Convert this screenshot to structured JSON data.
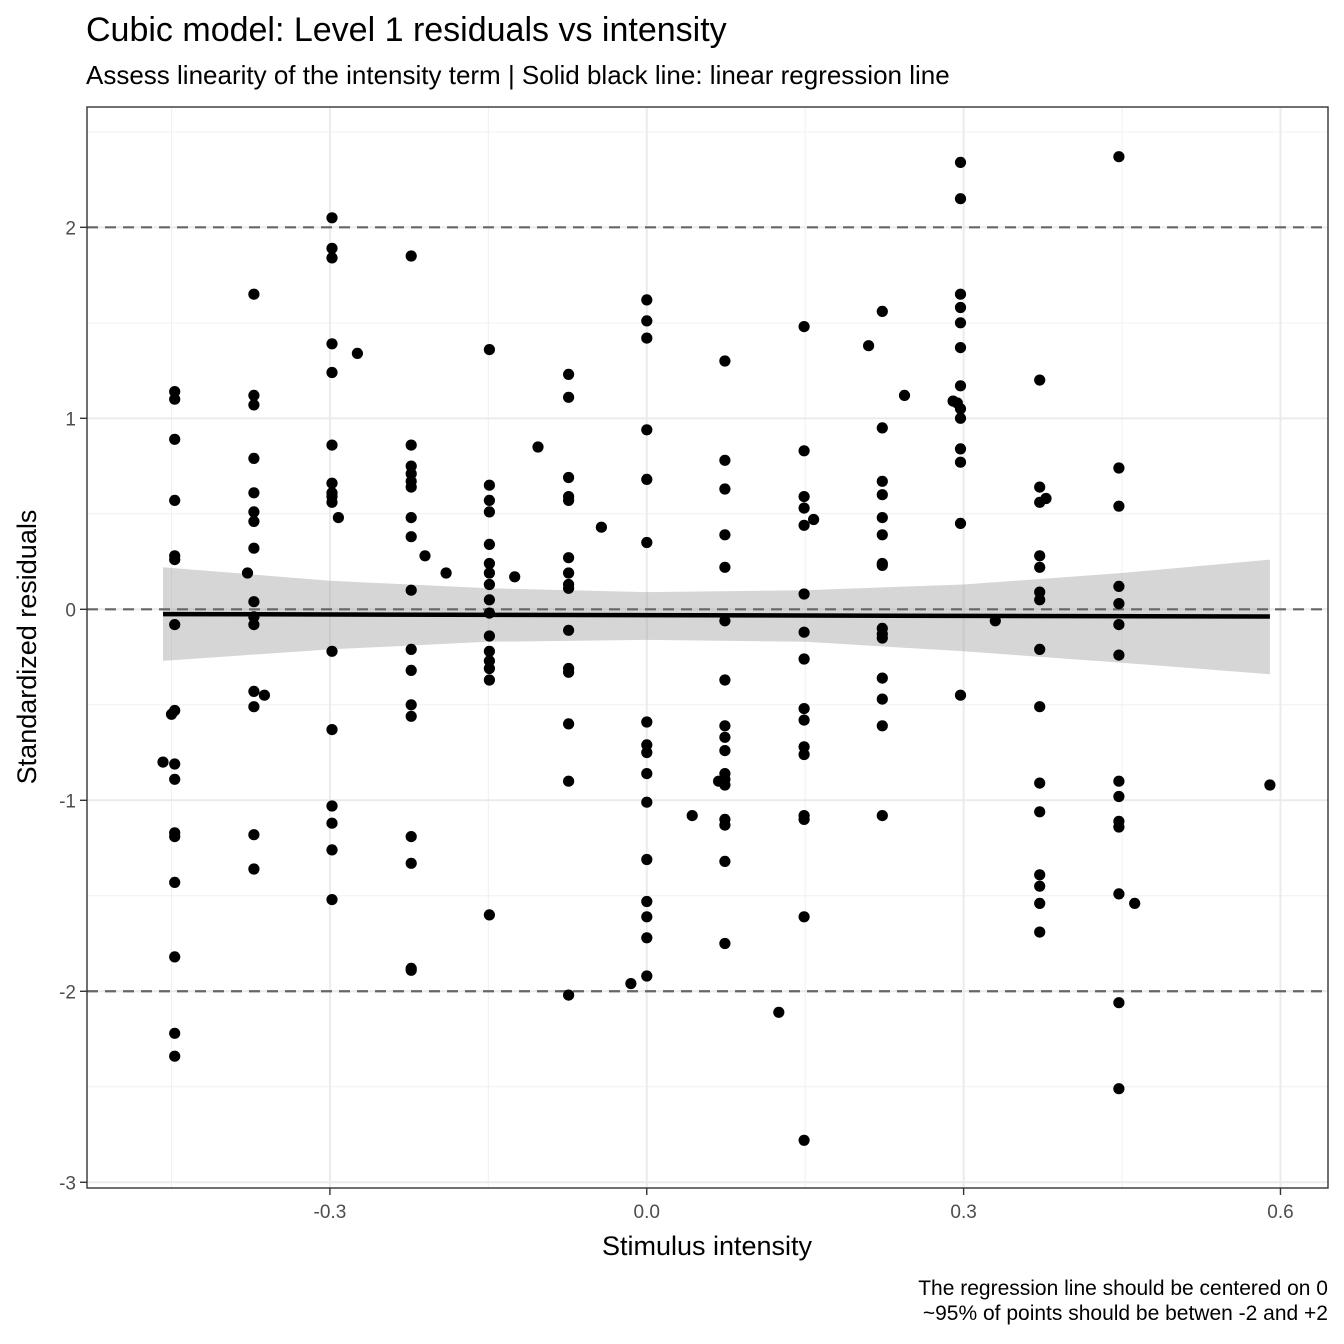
{
  "chart_data": {
    "type": "scatter",
    "title": "Cubic model: Level 1 residuals vs intensity",
    "subtitle": "Assess linearity of the intensity term | Solid black line: linear regression line",
    "xlabel": "Stimulus intensity",
    "ylabel": "Standardized residuals",
    "caption": [
      "The regression line should be centered on 0",
      "~95% of points should be betwen -2 and +2"
    ],
    "xlim": [
      -0.53,
      0.645
    ],
    "ylim": [
      -3.03,
      2.63
    ],
    "x_ticks": [
      -0.3,
      0.0,
      0.3,
      0.6
    ],
    "x_tick_labels": [
      "-0.3",
      "0.0",
      "0.3",
      "0.6"
    ],
    "y_ticks": [
      -3,
      -2,
      -1,
      0,
      1,
      2
    ],
    "y_tick_labels": [
      "-3",
      "-2",
      "-1",
      "0",
      "1",
      "2"
    ],
    "grid": true,
    "reference_lines_y": [
      -2,
      0,
      2
    ],
    "regression_line": {
      "x": [
        -0.458,
        0.59
      ],
      "y": [
        -0.025,
        -0.038
      ]
    },
    "confidence_band": {
      "x": [
        -0.458,
        -0.3,
        -0.15,
        0.0,
        0.15,
        0.3,
        0.45,
        0.59
      ],
      "upper": [
        0.22,
        0.15,
        0.11,
        0.09,
        0.1,
        0.13,
        0.19,
        0.26
      ],
      "lower": [
        -0.27,
        -0.21,
        -0.17,
        -0.16,
        -0.17,
        -0.22,
        -0.28,
        -0.34
      ]
    },
    "points": [
      [
        -0.458,
        -0.8
      ],
      [
        -0.45,
        -0.55
      ],
      [
        -0.447,
        1.14
      ],
      [
        -0.447,
        1.1
      ],
      [
        -0.447,
        0.89
      ],
      [
        -0.447,
        0.57
      ],
      [
        -0.447,
        0.28
      ],
      [
        -0.447,
        0.26
      ],
      [
        -0.447,
        -0.08
      ],
      [
        -0.447,
        -0.53
      ],
      [
        -0.447,
        -0.81
      ],
      [
        -0.447,
        -0.89
      ],
      [
        -0.447,
        -1.17
      ],
      [
        -0.447,
        -1.19
      ],
      [
        -0.447,
        -1.43
      ],
      [
        -0.447,
        -1.82
      ],
      [
        -0.447,
        -2.22
      ],
      [
        -0.447,
        -2.34
      ],
      [
        -0.378,
        0.19
      ],
      [
        -0.372,
        1.65
      ],
      [
        -0.372,
        1.12
      ],
      [
        -0.372,
        1.07
      ],
      [
        -0.372,
        0.79
      ],
      [
        -0.372,
        0.61
      ],
      [
        -0.372,
        0.51
      ],
      [
        -0.372,
        0.46
      ],
      [
        -0.372,
        0.32
      ],
      [
        -0.372,
        0.04
      ],
      [
        -0.372,
        -0.04
      ],
      [
        -0.372,
        -0.08
      ],
      [
        -0.372,
        -0.43
      ],
      [
        -0.372,
        -0.51
      ],
      [
        -0.372,
        -1.18
      ],
      [
        -0.372,
        -1.36
      ],
      [
        -0.362,
        -0.45
      ],
      [
        -0.298,
        2.05
      ],
      [
        -0.298,
        1.89
      ],
      [
        -0.298,
        1.84
      ],
      [
        -0.298,
        1.39
      ],
      [
        -0.298,
        1.24
      ],
      [
        -0.298,
        0.86
      ],
      [
        -0.298,
        0.66
      ],
      [
        -0.298,
        0.61
      ],
      [
        -0.298,
        0.59
      ],
      [
        -0.298,
        0.56
      ],
      [
        -0.298,
        -0.22
      ],
      [
        -0.298,
        -0.63
      ],
      [
        -0.298,
        -1.03
      ],
      [
        -0.298,
        -1.12
      ],
      [
        -0.298,
        -1.26
      ],
      [
        -0.298,
        -1.52
      ],
      [
        -0.292,
        0.48
      ],
      [
        -0.274,
        1.34
      ],
      [
        -0.223,
        1.85
      ],
      [
        -0.223,
        0.86
      ],
      [
        -0.223,
        0.75
      ],
      [
        -0.223,
        0.71
      ],
      [
        -0.223,
        0.67
      ],
      [
        -0.223,
        0.64
      ],
      [
        -0.223,
        0.48
      ],
      [
        -0.223,
        0.38
      ],
      [
        -0.223,
        0.1
      ],
      [
        -0.223,
        -0.21
      ],
      [
        -0.223,
        -0.32
      ],
      [
        -0.223,
        -0.5
      ],
      [
        -0.223,
        -0.56
      ],
      [
        -0.223,
        -1.19
      ],
      [
        -0.223,
        -1.33
      ],
      [
        -0.223,
        -1.88
      ],
      [
        -0.223,
        -1.89
      ],
      [
        -0.21,
        0.28
      ],
      [
        -0.19,
        0.19
      ],
      [
        -0.149,
        1.36
      ],
      [
        -0.149,
        0.65
      ],
      [
        -0.149,
        0.57
      ],
      [
        -0.149,
        0.51
      ],
      [
        -0.149,
        0.34
      ],
      [
        -0.149,
        0.24
      ],
      [
        -0.149,
        0.19
      ],
      [
        -0.149,
        0.13
      ],
      [
        -0.149,
        0.05
      ],
      [
        -0.149,
        -0.02
      ],
      [
        -0.149,
        -0.14
      ],
      [
        -0.149,
        -0.22
      ],
      [
        -0.149,
        -0.27
      ],
      [
        -0.149,
        -0.31
      ],
      [
        -0.149,
        -0.37
      ],
      [
        -0.149,
        -1.6
      ],
      [
        -0.125,
        0.17
      ],
      [
        -0.103,
        0.85
      ],
      [
        -0.074,
        1.23
      ],
      [
        -0.074,
        1.11
      ],
      [
        -0.074,
        0.69
      ],
      [
        -0.074,
        0.59
      ],
      [
        -0.074,
        0.57
      ],
      [
        -0.074,
        0.27
      ],
      [
        -0.074,
        0.19
      ],
      [
        -0.074,
        0.13
      ],
      [
        -0.074,
        0.11
      ],
      [
        -0.074,
        -0.11
      ],
      [
        -0.074,
        -0.31
      ],
      [
        -0.074,
        -0.33
      ],
      [
        -0.074,
        -0.6
      ],
      [
        -0.074,
        -0.9
      ],
      [
        -0.074,
        -2.02
      ],
      [
        -0.043,
        0.43
      ],
      [
        -0.015,
        -1.96
      ],
      [
        0.0,
        1.62
      ],
      [
        0.0,
        1.51
      ],
      [
        0.0,
        1.42
      ],
      [
        0.0,
        0.94
      ],
      [
        0.0,
        0.68
      ],
      [
        0.0,
        0.35
      ],
      [
        0.0,
        -0.59
      ],
      [
        0.0,
        -0.71
      ],
      [
        0.0,
        -0.75
      ],
      [
        0.0,
        -0.86
      ],
      [
        0.0,
        -1.01
      ],
      [
        0.0,
        -1.31
      ],
      [
        0.0,
        -1.53
      ],
      [
        0.0,
        -1.61
      ],
      [
        0.0,
        -1.72
      ],
      [
        0.0,
        -1.92
      ],
      [
        0.043,
        -1.08
      ],
      [
        0.074,
        1.3
      ],
      [
        0.074,
        0.78
      ],
      [
        0.074,
        0.63
      ],
      [
        0.074,
        0.39
      ],
      [
        0.074,
        0.22
      ],
      [
        0.074,
        -0.06
      ],
      [
        0.074,
        -0.37
      ],
      [
        0.074,
        -0.61
      ],
      [
        0.074,
        -0.67
      ],
      [
        0.074,
        -0.74
      ],
      [
        0.074,
        -0.86
      ],
      [
        0.074,
        -0.89
      ],
      [
        0.074,
        -0.92
      ],
      [
        0.074,
        -1.1
      ],
      [
        0.074,
        -1.13
      ],
      [
        0.074,
        -1.32
      ],
      [
        0.074,
        -1.75
      ],
      [
        0.068,
        -0.9
      ],
      [
        0.125,
        -2.11
      ],
      [
        0.149,
        1.48
      ],
      [
        0.149,
        0.83
      ],
      [
        0.149,
        0.59
      ],
      [
        0.149,
        0.53
      ],
      [
        0.149,
        0.44
      ],
      [
        0.149,
        0.08
      ],
      [
        0.149,
        -0.12
      ],
      [
        0.149,
        -0.26
      ],
      [
        0.149,
        -0.52
      ],
      [
        0.149,
        -0.58
      ],
      [
        0.149,
        -0.72
      ],
      [
        0.149,
        -0.76
      ],
      [
        0.149,
        -1.08
      ],
      [
        0.149,
        -1.1
      ],
      [
        0.149,
        -1.61
      ],
      [
        0.149,
        -2.78
      ],
      [
        0.158,
        0.47
      ],
      [
        0.21,
        1.38
      ],
      [
        0.223,
        1.56
      ],
      [
        0.223,
        0.95
      ],
      [
        0.223,
        0.67
      ],
      [
        0.223,
        0.6
      ],
      [
        0.223,
        0.48
      ],
      [
        0.223,
        0.39
      ],
      [
        0.223,
        0.24
      ],
      [
        0.223,
        0.23
      ],
      [
        0.223,
        -0.1
      ],
      [
        0.223,
        -0.13
      ],
      [
        0.223,
        -0.15
      ],
      [
        0.223,
        -0.36
      ],
      [
        0.223,
        -0.47
      ],
      [
        0.223,
        -0.61
      ],
      [
        0.223,
        -1.08
      ],
      [
        0.244,
        1.12
      ],
      [
        0.29,
        1.09
      ],
      [
        0.294,
        1.08
      ],
      [
        0.297,
        2.34
      ],
      [
        0.297,
        2.15
      ],
      [
        0.297,
        1.65
      ],
      [
        0.297,
        1.58
      ],
      [
        0.297,
        1.5
      ],
      [
        0.297,
        1.37
      ],
      [
        0.297,
        1.17
      ],
      [
        0.297,
        1.05
      ],
      [
        0.297,
        1.0
      ],
      [
        0.297,
        0.84
      ],
      [
        0.297,
        0.77
      ],
      [
        0.297,
        0.45
      ],
      [
        0.297,
        -0.45
      ],
      [
        0.33,
        -0.06
      ],
      [
        0.372,
        1.2
      ],
      [
        0.372,
        0.64
      ],
      [
        0.372,
        0.56
      ],
      [
        0.372,
        0.28
      ],
      [
        0.372,
        0.22
      ],
      [
        0.372,
        0.09
      ],
      [
        0.372,
        0.05
      ],
      [
        0.372,
        -0.21
      ],
      [
        0.372,
        -0.51
      ],
      [
        0.372,
        -0.91
      ],
      [
        0.372,
        -1.06
      ],
      [
        0.372,
        -1.39
      ],
      [
        0.372,
        -1.45
      ],
      [
        0.372,
        -1.54
      ],
      [
        0.372,
        -1.69
      ],
      [
        0.378,
        0.58
      ],
      [
        0.447,
        2.37
      ],
      [
        0.447,
        0.74
      ],
      [
        0.447,
        0.54
      ],
      [
        0.447,
        0.12
      ],
      [
        0.447,
        0.03
      ],
      [
        0.447,
        -0.08
      ],
      [
        0.447,
        -0.24
      ],
      [
        0.447,
        -0.9
      ],
      [
        0.447,
        -0.98
      ],
      [
        0.447,
        -1.11
      ],
      [
        0.447,
        -1.14
      ],
      [
        0.447,
        -1.49
      ],
      [
        0.447,
        -2.06
      ],
      [
        0.447,
        -2.51
      ],
      [
        0.462,
        -1.54
      ],
      [
        0.59,
        -0.92
      ]
    ]
  }
}
